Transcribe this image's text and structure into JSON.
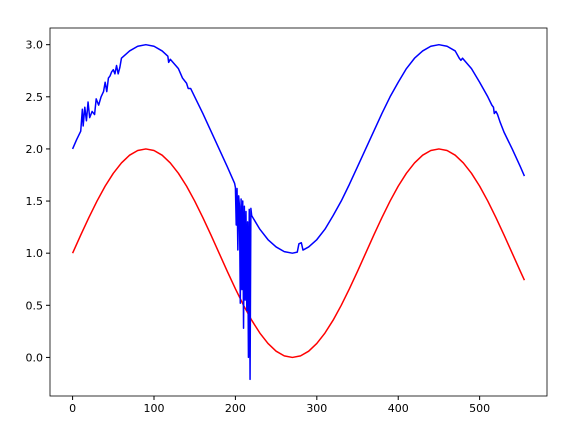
{
  "chart_data": {
    "type": "line",
    "xlim": [
      -27.75,
      582.75
    ],
    "ylim": [
      -0.37,
      3.16
    ],
    "xticks": [
      0,
      100,
      200,
      300,
      400,
      500
    ],
    "yticks": [
      {
        "value": 0,
        "label": "0.0"
      },
      0.5,
      {
        "value": 1,
        "label": "1.0"
      },
      1.5,
      {
        "value": 2,
        "label": "2.0"
      },
      2.5,
      {
        "value": 3,
        "label": "3.0"
      }
    ],
    "grid": false,
    "series": [
      {
        "color": "#ff0000",
        "x": [
          0,
          10,
          20,
          30,
          40,
          50,
          60,
          70,
          80,
          90,
          100,
          110,
          120,
          130,
          140,
          150,
          160,
          170,
          180,
          190,
          200,
          210,
          220,
          230,
          240,
          250,
          260,
          270,
          280,
          290,
          300,
          310,
          320,
          330,
          340,
          350,
          360,
          370,
          380,
          390,
          400,
          410,
          420,
          430,
          440,
          450,
          460,
          470,
          480,
          490,
          500,
          510,
          520,
          530,
          540,
          550,
          555
        ],
        "values": [
          1.0,
          1.174,
          1.342,
          1.5,
          1.643,
          1.766,
          1.866,
          1.94,
          1.985,
          2.0,
          1.985,
          1.94,
          1.866,
          1.766,
          1.643,
          1.5,
          1.342,
          1.174,
          1.0,
          0.826,
          0.658,
          0.5,
          0.357,
          0.234,
          0.134,
          0.06,
          0.015,
          0.0,
          0.015,
          0.06,
          0.134,
          0.234,
          0.357,
          0.5,
          0.658,
          0.826,
          1.0,
          1.174,
          1.342,
          1.5,
          1.643,
          1.766,
          1.866,
          1.94,
          1.985,
          2.0,
          1.985,
          1.94,
          1.866,
          1.766,
          1.643,
          1.5,
          1.342,
          1.174,
          1.0,
          0.826,
          0.741
        ]
      },
      {
        "color": "#0000ff",
        "x": [
          0,
          5,
          10,
          12,
          13,
          15,
          17,
          19,
          21,
          24,
          27,
          29,
          32,
          35,
          38,
          40,
          42,
          44,
          46,
          48,
          50,
          52,
          54,
          56,
          58,
          60,
          70,
          80,
          90,
          100,
          110,
          117,
          118,
          120,
          130,
          135,
          140,
          142,
          145,
          150,
          160,
          170,
          180,
          190,
          199,
          200,
          201,
          202,
          203,
          204,
          205,
          206,
          207,
          208,
          209,
          210,
          211,
          212,
          213,
          214,
          215,
          216,
          217,
          218,
          219,
          220,
          230,
          240,
          250,
          260,
          270,
          276,
          278,
          281,
          283,
          290,
          300,
          310,
          320,
          330,
          340,
          350,
          360,
          370,
          380,
          390,
          400,
          410,
          420,
          430,
          440,
          450,
          460,
          470,
          475,
          477,
          479,
          490,
          500,
          510,
          515,
          517,
          518,
          520,
          522,
          525,
          527,
          530,
          540,
          550,
          555
        ],
        "values": [
          2.0,
          2.09,
          2.17,
          2.38,
          2.22,
          2.4,
          2.27,
          2.45,
          2.3,
          2.36,
          2.33,
          2.48,
          2.42,
          2.5,
          2.55,
          2.64,
          2.55,
          2.68,
          2.7,
          2.74,
          2.76,
          2.72,
          2.8,
          2.72,
          2.78,
          2.87,
          2.94,
          2.985,
          3.0,
          2.985,
          2.94,
          2.89,
          2.83,
          2.86,
          2.77,
          2.68,
          2.63,
          2.58,
          2.58,
          2.5,
          2.34,
          2.17,
          2.0,
          1.83,
          1.67,
          1.63,
          1.27,
          1.62,
          1.03,
          1.55,
          1.45,
          0.52,
          1.52,
          0.65,
          1.5,
          0.28,
          1.45,
          0.55,
          1.4,
          0.45,
          1.3,
          0.0,
          1.42,
          -0.21,
          1.43,
          1.36,
          1.23,
          1.13,
          1.06,
          1.015,
          1.0,
          1.01,
          1.09,
          1.1,
          1.03,
          1.06,
          1.13,
          1.23,
          1.36,
          1.5,
          1.66,
          1.83,
          2.0,
          2.17,
          2.34,
          2.5,
          2.64,
          2.77,
          2.87,
          2.94,
          2.985,
          3.0,
          2.985,
          2.94,
          2.87,
          2.85,
          2.87,
          2.77,
          2.64,
          2.5,
          2.42,
          2.4,
          2.34,
          2.36,
          2.33,
          2.26,
          2.22,
          2.16,
          2.0,
          1.83,
          1.74
        ]
      }
    ]
  }
}
